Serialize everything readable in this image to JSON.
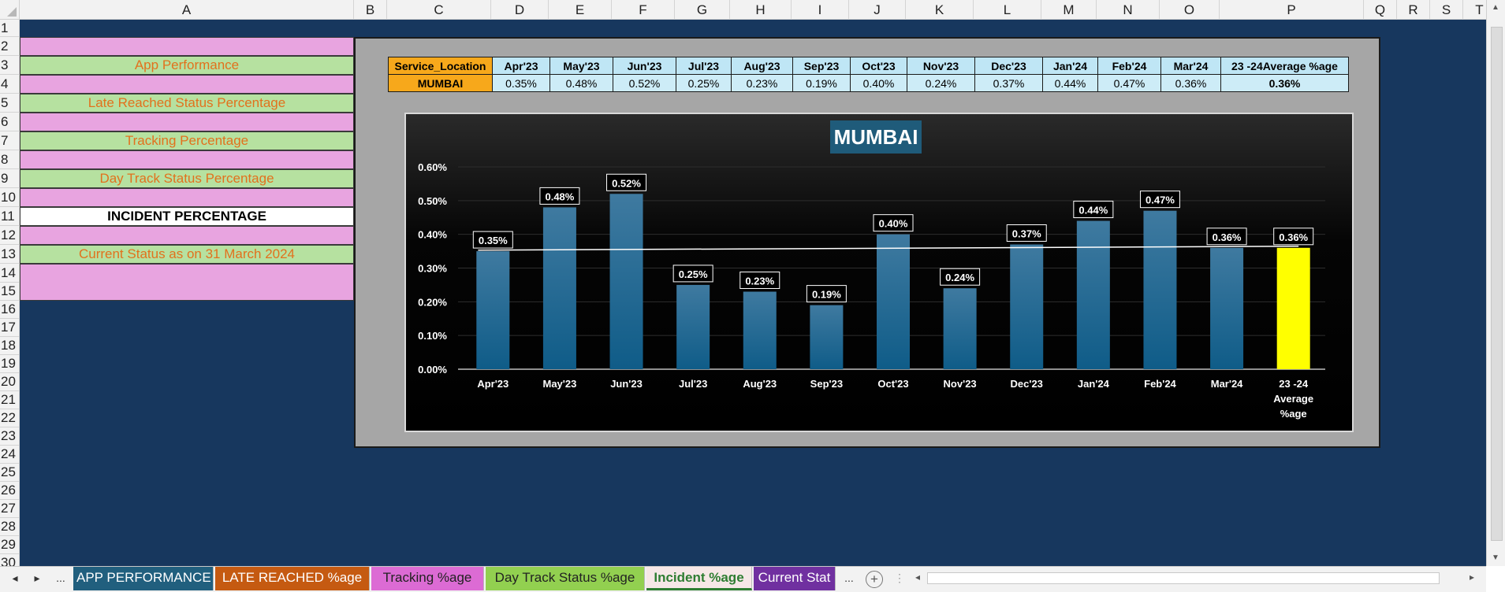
{
  "columns": [
    {
      "label": "A",
      "w": 424
    },
    {
      "label": "B",
      "w": 42
    },
    {
      "label": "C",
      "w": 132
    },
    {
      "label": "D",
      "w": 73
    },
    {
      "label": "E",
      "w": 80
    },
    {
      "label": "F",
      "w": 80
    },
    {
      "label": "G",
      "w": 70
    },
    {
      "label": "H",
      "w": 78
    },
    {
      "label": "I",
      "w": 73
    },
    {
      "label": "J",
      "w": 72
    },
    {
      "label": "K",
      "w": 86
    },
    {
      "label": "L",
      "w": 86
    },
    {
      "label": "M",
      "w": 70
    },
    {
      "label": "N",
      "w": 80
    },
    {
      "label": "O",
      "w": 76
    },
    {
      "label": "P",
      "w": 183
    },
    {
      "label": "Q",
      "w": 42
    },
    {
      "label": "R",
      "w": 42
    },
    {
      "label": "S",
      "w": 42
    },
    {
      "label": "T",
      "w": 42
    },
    {
      "label": "",
      "w": 40
    }
  ],
  "rows": [
    "1",
    "2",
    "3",
    "4",
    "5",
    "6",
    "7",
    "8",
    "9",
    "10",
    "11",
    "12",
    "13",
    "14",
    "15",
    "16",
    "17",
    "18",
    "19",
    "20",
    "21",
    "22",
    "23",
    "24",
    "25",
    "26",
    "27",
    "28",
    "29",
    "30"
  ],
  "left_labels": {
    "app_performance": "App Performance",
    "late_reached": "Late Reached Status Percentage",
    "tracking": "Tracking Percentage",
    "day_track": "Day Track Status Percentage",
    "incident": "INCIDENT PERCENTAGE",
    "current_status": "Current Status as on 31 March 2024"
  },
  "table": {
    "headers": [
      "Service_Location",
      "Apr'23",
      "May'23",
      "Jun'23",
      "Jul'23",
      "Aug'23",
      "Sep'23",
      "Oct'23",
      "Nov'23",
      "Dec'23",
      "Jan'24",
      "Feb'24",
      "Mar'24",
      "23 -24Average %age"
    ],
    "row": [
      "MUMBAI",
      "0.35%",
      "0.48%",
      "0.52%",
      "0.25%",
      "0.23%",
      "0.19%",
      "0.40%",
      "0.24%",
      "0.37%",
      "0.44%",
      "0.47%",
      "0.36%",
      "0.36%"
    ]
  },
  "chart_data": {
    "type": "bar",
    "title": "MUMBAI",
    "categories": [
      "Apr'23",
      "May'23",
      "Jun'23",
      "Jul'23",
      "Aug'23",
      "Sep'23",
      "Oct'23",
      "Nov'23",
      "Dec'23",
      "Jan'24",
      "Feb'24",
      "Mar'24",
      "23 -24 Average %age"
    ],
    "values": [
      0.35,
      0.48,
      0.52,
      0.25,
      0.23,
      0.19,
      0.4,
      0.24,
      0.37,
      0.44,
      0.47,
      0.36,
      0.36
    ],
    "data_labels": [
      "0.35%",
      "0.48%",
      "0.52%",
      "0.25%",
      "0.23%",
      "0.19%",
      "0.40%",
      "0.24%",
      "0.37%",
      "0.44%",
      "0.47%",
      "0.36%",
      "0.36%"
    ],
    "yticks": [
      "0.00%",
      "0.10%",
      "0.20%",
      "0.30%",
      "0.40%",
      "0.50%",
      "0.60%"
    ],
    "ylim": [
      0,
      0.6
    ],
    "average_line": 0.36,
    "bar_color": "#1b6a96",
    "highlight_color": "#ffff00",
    "grid": true
  },
  "tabs": [
    {
      "label": "APP PERFORMANCE",
      "bg": "#215f7e",
      "color": "#ffffff"
    },
    {
      "label": "LATE REACHED %age",
      "bg": "#c55a11",
      "color": "#ffffff"
    },
    {
      "label": "Tracking %age",
      "bg": "#dc6bd4",
      "color": "#222222"
    },
    {
      "label": "Day Track Status %age",
      "bg": "#92d050",
      "color": "#222222"
    },
    {
      "label": "Incident %age",
      "bg": "#f6e7e7",
      "color": "#2e7d32",
      "active": true
    },
    {
      "label": "Current Stat",
      "bg": "#7030a0",
      "color": "#ffffff"
    }
  ],
  "tabbar": {
    "more_left": "...",
    "more_right": "...",
    "add": "+"
  }
}
